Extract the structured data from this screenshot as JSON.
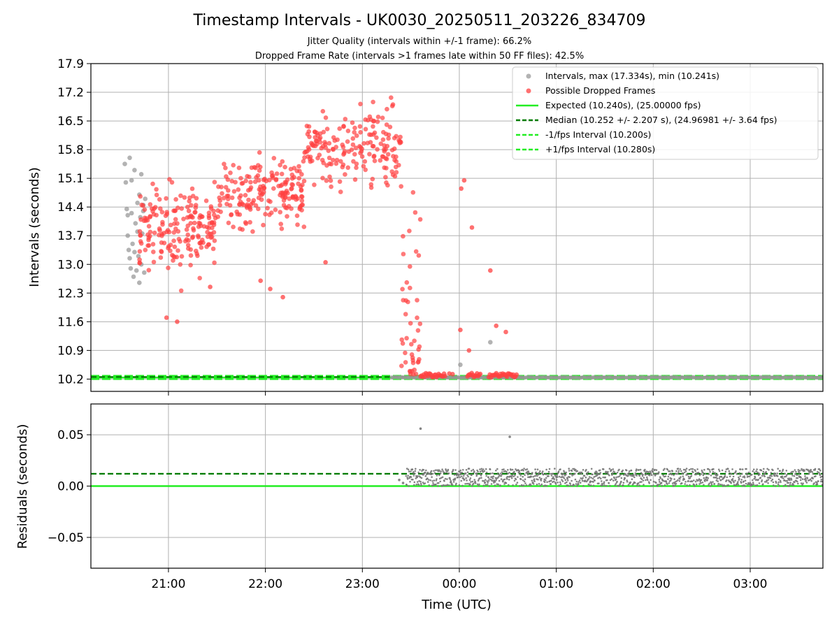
{
  "figure": {
    "title": "Timestamp Intervals - UK0030_20250511_203226_834709",
    "subtitle_1": "Jitter Quality (intervals within +/-1 frame): 66.2%",
    "subtitle_2": "Dropped Frame Rate (intervals >1 frames late within 50 FF files): 42.5%"
  },
  "chart_data": [
    {
      "type": "scatter",
      "panel": "top",
      "ylabel": "Intervals (seconds)",
      "xlabel": "",
      "xlim_hours": [
        20.2,
        27.75
      ],
      "ylim": [
        9.9,
        17.9
      ],
      "yticks": [
        "10.2",
        "10.9",
        "11.6",
        "12.3",
        "13.0",
        "13.7",
        "14.4",
        "15.1",
        "15.8",
        "16.5",
        "17.2",
        "17.9"
      ],
      "ytick_values": [
        10.2,
        10.9,
        11.6,
        12.3,
        13.0,
        13.7,
        14.4,
        15.1,
        15.8,
        16.5,
        17.2,
        17.9
      ],
      "xticks": [
        "21:00",
        "22:00",
        "23:00",
        "00:00",
        "01:00",
        "02:00",
        "03:00"
      ],
      "xtick_hours": [
        21,
        22,
        23,
        24,
        25,
        26,
        27
      ],
      "grid": true,
      "legend_position": "top-right",
      "legend": [
        {
          "label": "Intervals, max (17.334s), min (10.241s)",
          "kind": "marker",
          "color": "#999999"
        },
        {
          "label": "Possible Dropped Frames",
          "kind": "marker",
          "color": "#ff4040"
        },
        {
          "label": "Expected (10.240s), (25.00000 fps)",
          "kind": "line",
          "color": "#22ee22",
          "dash": "solid"
        },
        {
          "label": "Median (10.252 +/- 2.207 s), (24.96981 +/- 3.64 fps)",
          "kind": "line",
          "color": "#007a00",
          "dash": "dashed"
        },
        {
          "label": "-1/fps Interval (10.200s)",
          "kind": "line",
          "color": "#22ee22",
          "dash": "dashed"
        },
        {
          "label": "+1/fps Interval (10.280s)",
          "kind": "line",
          "color": "#22ee22",
          "dash": "dashed"
        }
      ],
      "reference_lines": {
        "expected": 10.24,
        "median": 10.252,
        "minus_1fps": 10.2,
        "plus_1fps": 10.28
      },
      "series": [
        {
          "name": "Intervals, max (17.334s), min (10.241s)",
          "color": "#999999",
          "regular_points": {
            "x_range_hours": [
              23.3,
              27.75
            ],
            "y": 10.241
          },
          "scattered_points": [
            [
              20.55,
              15.45
            ],
            [
              20.56,
              15.0
            ],
            [
              20.57,
              14.35
            ],
            [
              20.58,
              13.7
            ],
            [
              20.59,
              13.35
            ],
            [
              20.6,
              15.6
            ],
            [
              20.61,
              12.9
            ],
            [
              20.62,
              14.25
            ],
            [
              20.63,
              13.5
            ],
            [
              20.64,
              12.7
            ],
            [
              20.65,
              15.3
            ],
            [
              20.66,
              14.0
            ],
            [
              20.67,
              12.85
            ],
            [
              20.68,
              14.5
            ],
            [
              20.69,
              13.2
            ],
            [
              20.7,
              12.55
            ],
            [
              20.71,
              14.15
            ],
            [
              20.72,
              15.2
            ],
            [
              20.73,
              13.75
            ],
            [
              20.74,
              14.45
            ],
            [
              20.75,
              12.8
            ],
            [
              20.76,
              14.6
            ],
            [
              20.62,
              15.05
            ],
            [
              20.65,
              13.3
            ],
            [
              20.68,
              13.8
            ],
            [
              20.7,
              14.7
            ],
            [
              20.72,
              13.0
            ],
            [
              20.74,
              14.3
            ],
            [
              20.58,
              14.2
            ],
            [
              20.6,
              13.15
            ],
            [
              24.01,
              10.55
            ],
            [
              24.32,
              11.1
            ]
          ]
        },
        {
          "name": "Possible Dropped Frames",
          "color": "#ff4040",
          "description_clusters": [
            {
              "x_range_hours": [
                20.7,
                21.5
              ],
              "y_range": [
                12.3,
                15.5
              ]
            },
            {
              "x_range_hours": [
                21.5,
                22.4
              ],
              "y_range": [
                13.3,
                16.1
              ]
            },
            {
              "x_range_hours": [
                22.4,
                23.4
              ],
              "y_range": [
                14.5,
                17.3
              ]
            },
            {
              "x_range_hours": [
                23.4,
                23.6
              ],
              "y_range": [
                10.3,
                15.0
              ]
            },
            {
              "x_range_hours": [
                23.6,
                24.6
              ],
              "y_range": [
                10.24,
                10.35
              ]
            }
          ],
          "outliers": [
            [
              20.98,
              11.7
            ],
            [
              21.09,
              11.6
            ],
            [
              21.95,
              12.6
            ],
            [
              22.05,
              12.4
            ],
            [
              22.18,
              12.2
            ],
            [
              22.62,
              13.05
            ],
            [
              21.43,
              12.45
            ],
            [
              24.02,
              14.85
            ],
            [
              24.05,
              15.05
            ],
            [
              24.13,
              13.9
            ],
            [
              24.32,
              12.85
            ],
            [
              24.38,
              11.5
            ],
            [
              24.48,
              11.35
            ],
            [
              24.01,
              11.4
            ],
            [
              24.1,
              10.9
            ]
          ]
        }
      ]
    },
    {
      "type": "scatter",
      "panel": "bottom",
      "ylabel": "Residuals (seconds)",
      "xlabel": "Time (UTC)",
      "xlim_hours": [
        20.2,
        27.75
      ],
      "ylim": [
        -0.08,
        0.08
      ],
      "yticks": [
        "−0.05",
        "0.00",
        "0.05"
      ],
      "ytick_values": [
        -0.05,
        0.0,
        0.05
      ],
      "xticks": [
        "21:00",
        "22:00",
        "23:00",
        "00:00",
        "01:00",
        "02:00",
        "03:00"
      ],
      "xtick_hours": [
        21,
        22,
        23,
        24,
        25,
        26,
        27
      ],
      "grid": true,
      "reference_lines": {
        "zero": 0.0,
        "median_residual": 0.012
      },
      "series": [
        {
          "name": "",
          "color": "#777777",
          "band": {
            "x_range_hours": [
              23.45,
              27.75
            ],
            "y_range": [
              0.0,
              0.017
            ]
          },
          "outliers": [
            [
              23.38,
              0.006
            ],
            [
              23.42,
              0.003
            ],
            [
              23.6,
              0.056
            ],
            [
              24.52,
              0.048
            ]
          ]
        }
      ]
    }
  ],
  "colors": {
    "axis": "#000000",
    "grid": "#b0b0b0",
    "expected_line": "#22ee22",
    "median_line": "#007a00",
    "normal_points": "#999999",
    "dropped_points": "#ff4040",
    "residual_points": "#777777"
  }
}
